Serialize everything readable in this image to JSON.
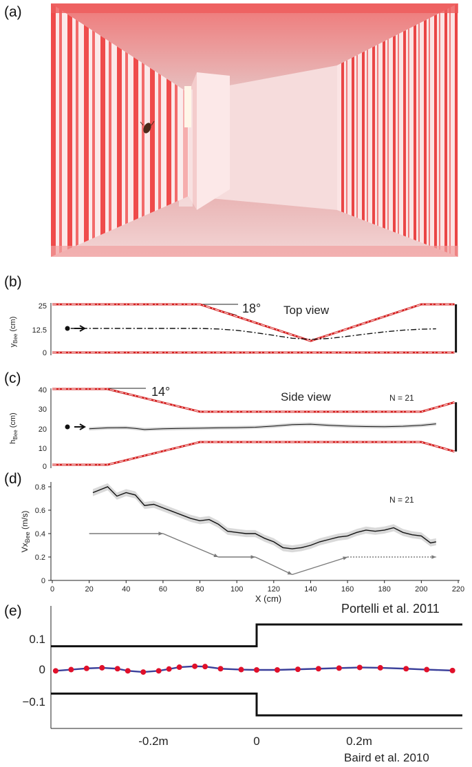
{
  "panels": {
    "a": {
      "label": "(a)"
    },
    "b": {
      "label": "(b)",
      "annotation_angle": "18°",
      "view_label": "Top view",
      "ylabel_main": "y",
      "ylabel_sub": "Bee",
      "ylabel_unit": "(cm)",
      "yticks": [
        "0",
        "12.5",
        "25"
      ]
    },
    "c": {
      "label": "(c)",
      "annotation_angle": "14°",
      "view_label": "Side view",
      "n_label": "N = 21",
      "ylabel_main": "h",
      "ylabel_sub": "Bee",
      "ylabel_unit": "(cm)",
      "yticks": [
        "0",
        "10",
        "20",
        "30",
        "40"
      ]
    },
    "d": {
      "label": "(d)",
      "n_label": "N = 21",
      "ylabel_main": "Vx",
      "ylabel_sub": "Bee",
      "ylabel_unit": "(m/s)",
      "yticks": [
        "0",
        "0.2",
        "0.4",
        "0.6",
        "0.8"
      ],
      "xticks": [
        "0",
        "20",
        "40",
        "60",
        "80",
        "100",
        "120",
        "140",
        "160",
        "180",
        "200",
        "220"
      ],
      "xlabel": "X (cm)",
      "citation": "Portelli et al. 2011"
    },
    "e": {
      "label": "(e)",
      "yticks": [
        "0.1",
        "0",
        "−0.1"
      ],
      "xticks": [
        "-0.2m",
        "0",
        "0.2m"
      ],
      "citation": "Baird et al. 2010"
    }
  },
  "colors": {
    "stripe_red": "#ef4b4b",
    "wall_red": "#d42020",
    "trace_blue": "#3a3f9a",
    "dot_red": "#e0102a",
    "arrow_gray": "#7a7a7a"
  },
  "chart_data": [
    {
      "panel": "b",
      "type": "line",
      "title": "Top view",
      "xlim": [
        0,
        220
      ],
      "ylim": [
        0,
        25
      ],
      "ylabel": "yBee (cm)",
      "series": [
        {
          "x": [
            10,
            20,
            40,
            60,
            80,
            90,
            100,
            110,
            120,
            130,
            140,
            150,
            160,
            170,
            180,
            190,
            200,
            208
          ],
          "y": [
            12.5,
            12.5,
            12.5,
            12.5,
            12.5,
            12.2,
            11.5,
            10.3,
            8.9,
            7.4,
            6.8,
            7.3,
            8.4,
            9.6,
            10.7,
            11.6,
            12.1,
            12.3
          ]
        }
      ],
      "walls": {
        "upper_x": [
          0,
          80,
          140,
          200,
          218
        ],
        "upper_y": [
          25,
          25,
          6,
          25,
          25
        ],
        "lower_y": 0
      }
    },
    {
      "panel": "c",
      "type": "line",
      "title": "Side view",
      "xlim": [
        0,
        220
      ],
      "ylim": [
        0,
        40
      ],
      "ylabel": "hBee (cm)",
      "series": [
        {
          "name": "N = 21",
          "x": [
            20,
            30,
            40,
            45,
            50,
            55,
            60,
            70,
            80,
            90,
            100,
            110,
            120,
            130,
            140,
            150,
            160,
            170,
            180,
            190,
            200,
            208
          ],
          "y": [
            19,
            19.5,
            19.6,
            19.2,
            18.6,
            18.8,
            19.0,
            19.2,
            19.3,
            19.5,
            19.6,
            19.8,
            20.4,
            21.2,
            21.4,
            20.8,
            20.4,
            20.2,
            20.1,
            20.3,
            20.8,
            21.6
          ]
        }
      ],
      "walls": {
        "upper_x": [
          0,
          30,
          80,
          200,
          218
        ],
        "upper_y": [
          40,
          40,
          28,
          28,
          33
        ],
        "lower_x": [
          0,
          30,
          80,
          200,
          218
        ],
        "lower_y": [
          0,
          0,
          12,
          12,
          7
        ]
      }
    },
    {
      "panel": "d",
      "type": "line",
      "ylabel": "VxBee (m/s)",
      "xlabel": "X (cm)",
      "xlim": [
        0,
        220
      ],
      "ylim": [
        0,
        0.9
      ],
      "series": [
        {
          "name": "N = 21",
          "x": [
            22,
            30,
            35,
            40,
            45,
            50,
            55,
            60,
            65,
            70,
            75,
            80,
            85,
            90,
            95,
            100,
            105,
            110,
            115,
            120,
            125,
            130,
            135,
            140,
            145,
            150,
            155,
            160,
            165,
            170,
            175,
            180,
            185,
            190,
            195,
            200,
            205,
            208
          ],
          "y": [
            0.75,
            0.8,
            0.72,
            0.75,
            0.73,
            0.64,
            0.65,
            0.62,
            0.59,
            0.56,
            0.53,
            0.51,
            0.52,
            0.48,
            0.42,
            0.41,
            0.4,
            0.4,
            0.36,
            0.33,
            0.28,
            0.27,
            0.28,
            0.3,
            0.33,
            0.35,
            0.37,
            0.38,
            0.41,
            0.43,
            0.42,
            0.43,
            0.45,
            0.41,
            0.39,
            0.38,
            0.32,
            0.33
          ]
        }
      ],
      "arrows": [
        {
          "x": [
            20,
            60
          ],
          "y": [
            0.4,
            0.4
          ]
        },
        {
          "x": [
            60,
            90
          ],
          "y": [
            0.4,
            0.2
          ]
        },
        {
          "x": [
            90,
            110
          ],
          "y": [
            0.2,
            0.2
          ]
        },
        {
          "x": [
            110,
            130
          ],
          "y": [
            0.2,
            0.05
          ]
        },
        {
          "x": [
            130,
            160
          ],
          "y": [
            0.05,
            0.2
          ]
        },
        {
          "x": [
            160,
            208
          ],
          "y": [
            0.2,
            0.2
          ],
          "dotted": true
        }
      ]
    },
    {
      "panel": "e",
      "type": "line",
      "xlim": [
        -0.4,
        0.4
      ],
      "ylim": [
        -0.18,
        0.18
      ],
      "series": [
        {
          "x": [
            -0.39,
            -0.36,
            -0.33,
            -0.3,
            -0.27,
            -0.25,
            -0.22,
            -0.19,
            -0.17,
            -0.15,
            -0.12,
            -0.1,
            -0.07,
            -0.03,
            0.0,
            0.04,
            0.08,
            0.12,
            0.16,
            0.2,
            0.24,
            0.29,
            0.33,
            0.38
          ],
          "y": [
            -0.003,
            0.001,
            0.005,
            0.007,
            0.004,
            -0.003,
            -0.007,
            -0.003,
            0.003,
            0.009,
            0.012,
            0.011,
            0.004,
            0.001,
            0.0,
            0.0,
            0.002,
            0.004,
            0.006,
            0.008,
            0.007,
            0.004,
            0.001,
            -0.002
          ]
        }
      ],
      "walls": {
        "left_half": 0.078,
        "right_half": 0.15,
        "step_x": 0
      }
    }
  ]
}
